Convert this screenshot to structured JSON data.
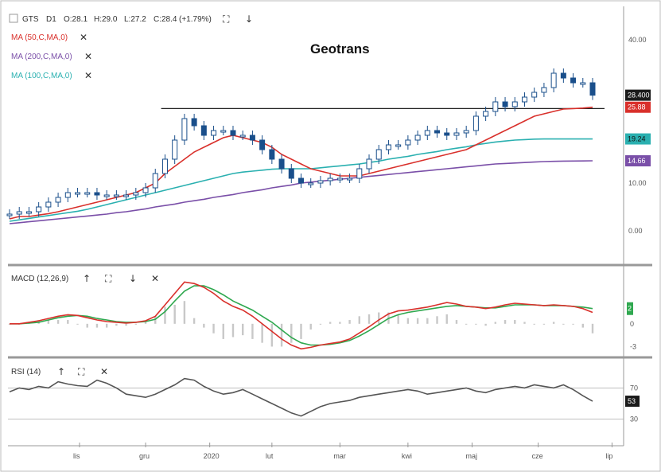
{
  "header": {
    "symbol": "GTS",
    "timeframe": "D1",
    "open": "O:28.1",
    "high": "H:29.0",
    "low": "L:27.2",
    "close": "C:28.4",
    "change": "(+1.79%)"
  },
  "title": "Geotrans",
  "indicators": [
    {
      "label": "MA (50,C,MA,0)",
      "color": "#d9302b"
    },
    {
      "label": "MA (200,C,MA,0)",
      "color": "#7a4fa8"
    },
    {
      "label": "MA (100,C,MA,0)",
      "color": "#2ab0b0"
    }
  ],
  "macd_label": "MACD (12,26,9)",
  "rsi_label": "RSI (14)",
  "icons": {
    "maximize": "maximize-icon",
    "down": "arrow-down-icon",
    "up": "arrow-up-icon",
    "close": "close-icon"
  },
  "colors": {
    "price": "#1a4f8b",
    "ma50": "#d9302b",
    "ma100": "#2ab0b0",
    "ma200": "#7a4fa8",
    "macd": "#d9302b",
    "signal": "#2fa84f",
    "rsi": "#555555",
    "last_price_tag": "#1a1a1a",
    "ma50_tag": "#d9302b",
    "ma100_tag": "#2ab0b0",
    "ma200_tag": "#7a4fa8"
  },
  "chart_data": [
    {
      "type": "line",
      "title": "Geotrans",
      "x_ticks": [
        "lis",
        "gru",
        "2020",
        "lut",
        "mar",
        "kwi",
        "maj",
        "cze",
        "lip"
      ],
      "y_ticks": [
        "40.00",
        "10.00",
        "0.00"
      ],
      "ylim": [
        -5,
        45
      ],
      "horizontal_line": 25.6,
      "tags": {
        "last": "28.400",
        "ma50": "25.88",
        "ma100": "19.24",
        "ma200": "14.66"
      },
      "x": [
        0,
        5,
        10,
        15,
        20,
        25,
        30,
        35,
        40,
        45,
        50,
        55,
        60,
        65,
        70,
        75,
        80,
        85,
        90,
        95,
        100,
        105,
        110,
        115,
        120,
        125,
        130,
        135,
        140,
        145,
        150,
        155,
        160,
        165,
        170,
        175,
        180,
        185,
        190,
        195,
        200,
        205,
        210,
        215,
        220,
        225,
        230,
        235,
        240,
        245,
        250,
        255,
        260,
        265,
        270,
        275,
        280,
        285,
        290,
        295,
        300
      ],
      "series": [
        {
          "name": "price",
          "values": [
            3.5,
            4,
            4,
            5,
            6,
            7,
            8,
            8,
            8,
            7.5,
            7.5,
            7.5,
            7.5,
            8,
            9,
            12,
            15,
            19,
            23.5,
            22,
            20,
            21,
            21,
            20,
            20,
            19,
            17,
            15,
            13,
            11,
            10,
            10,
            10.5,
            11,
            11,
            11,
            13,
            15,
            17,
            18,
            18,
            19,
            20,
            21,
            20.5,
            20,
            20.5,
            21,
            24,
            25,
            27,
            26,
            27,
            28,
            29,
            30,
            33,
            32,
            31,
            31,
            28.4
          ]
        },
        {
          "name": "ma50",
          "values": [
            2.5,
            3,
            3,
            3.3,
            3.6,
            4,
            4.5,
            5,
            5.5,
            6,
            6.5,
            7,
            7.5,
            8,
            9,
            10,
            12,
            13.5,
            15,
            16.5,
            17.5,
            18.5,
            19.5,
            20,
            19.5,
            19,
            18.5,
            17.5,
            16,
            15,
            14,
            13,
            12.5,
            12,
            11.5,
            11.5,
            11.5,
            12,
            12.5,
            13,
            13.5,
            14,
            14.5,
            15,
            15.5,
            16,
            16.5,
            17,
            18,
            19,
            20,
            21,
            22,
            23,
            24,
            24.5,
            25,
            25.5,
            25.6,
            25.7,
            25.88
          ]
        },
        {
          "name": "ma100",
          "values": [
            2,
            2.3,
            2.6,
            2.9,
            3.2,
            3.5,
            3.8,
            4.1,
            4.5,
            5,
            5.5,
            6,
            6.5,
            7,
            7.5,
            8,
            8.5,
            9,
            9.5,
            10,
            10.5,
            11,
            11.5,
            12,
            12.3,
            12.5,
            12.7,
            12.9,
            13,
            13,
            13,
            13,
            13.2,
            13.4,
            13.6,
            13.8,
            14,
            14.3,
            14.6,
            15,
            15.3,
            15.6,
            16,
            16.3,
            16.6,
            17,
            17.3,
            17.6,
            18,
            18.3,
            18.6,
            18.8,
            19,
            19.1,
            19.2,
            19.24,
            19.24,
            19.24,
            19.24,
            19.24,
            19.24
          ]
        },
        {
          "name": "ma200",
          "values": [
            1.5,
            1.7,
            1.9,
            2.1,
            2.3,
            2.5,
            2.7,
            2.9,
            3.1,
            3.3,
            3.5,
            3.8,
            4,
            4.3,
            4.6,
            5,
            5.3,
            5.6,
            6,
            6.3,
            6.6,
            7,
            7.3,
            7.6,
            8,
            8.3,
            8.6,
            9,
            9.3,
            9.6,
            10,
            10.2,
            10.4,
            10.6,
            10.8,
            11,
            11.2,
            11.4,
            11.6,
            11.8,
            12,
            12.2,
            12.4,
            12.6,
            12.8,
            13,
            13.2,
            13.4,
            13.6,
            13.8,
            14,
            14.1,
            14.2,
            14.3,
            14.4,
            14.5,
            14.55,
            14.6,
            14.62,
            14.64,
            14.66
          ]
        }
      ]
    },
    {
      "type": "line",
      "title": "MACD (12,26,9)",
      "y_ticks": [
        "0",
        "-3"
      ],
      "ylim": [
        -4,
        7
      ],
      "tags": {
        "macd": "2",
        "signal": "2"
      },
      "x": [
        0,
        5,
        10,
        15,
        20,
        25,
        30,
        35,
        40,
        45,
        50,
        55,
        60,
        65,
        70,
        75,
        80,
        85,
        90,
        95,
        100,
        105,
        110,
        115,
        120,
        125,
        130,
        135,
        140,
        145,
        150,
        155,
        160,
        165,
        170,
        175,
        180,
        185,
        190,
        195,
        200,
        205,
        210,
        215,
        220,
        225,
        230,
        235,
        240,
        245,
        250,
        255,
        260,
        265,
        270,
        275,
        280,
        285,
        290,
        295,
        300
      ],
      "series": [
        {
          "name": "macd",
          "values": [
            0,
            0,
            0.2,
            0.4,
            0.7,
            1,
            1.2,
            1.1,
            0.8,
            0.5,
            0.3,
            0.2,
            0.1,
            0.2,
            0.4,
            1,
            2.5,
            4,
            5.5,
            5.3,
            4.8,
            4,
            3,
            2.3,
            1.8,
            1,
            0,
            -1,
            -2,
            -2.8,
            -3.3,
            -3.1,
            -2.8,
            -2.6,
            -2.4,
            -2,
            -1.2,
            -0.4,
            0.5,
            1.3,
            1.7,
            1.8,
            2,
            2.2,
            2.5,
            2.8,
            2.6,
            2.3,
            2.2,
            2,
            2.2,
            2.5,
            2.7,
            2.6,
            2.5,
            2.4,
            2.5,
            2.4,
            2.3,
            2,
            1.5
          ]
        },
        {
          "name": "signal",
          "values": [
            0,
            0,
            0.1,
            0.2,
            0.5,
            0.8,
            1,
            1.1,
            1,
            0.7,
            0.5,
            0.3,
            0.2,
            0.2,
            0.3,
            0.6,
            1.6,
            3,
            4.3,
            5,
            5,
            4.5,
            3.8,
            3,
            2.4,
            1.8,
            1,
            0.2,
            -0.8,
            -1.8,
            -2.5,
            -2.8,
            -2.8,
            -2.7,
            -2.5,
            -2.2,
            -1.6,
            -0.9,
            -0.1,
            0.7,
            1.2,
            1.5,
            1.7,
            1.9,
            2.1,
            2.3,
            2.4,
            2.3,
            2.2,
            2.1,
            2.1,
            2.3,
            2.5,
            2.5,
            2.5,
            2.4,
            2.4,
            2.4,
            2.3,
            2.2,
            2
          ]
        }
      ]
    },
    {
      "type": "line",
      "title": "RSI (14)",
      "y_ticks": [
        "70",
        "30"
      ],
      "ylim": [
        0,
        100
      ],
      "tags": {
        "rsi": "53"
      },
      "x": [
        0,
        5,
        10,
        15,
        20,
        25,
        30,
        35,
        40,
        45,
        50,
        55,
        60,
        65,
        70,
        75,
        80,
        85,
        90,
        95,
        100,
        105,
        110,
        115,
        120,
        125,
        130,
        135,
        140,
        145,
        150,
        155,
        160,
        165,
        170,
        175,
        180,
        185,
        190,
        195,
        200,
        205,
        210,
        215,
        220,
        225,
        230,
        235,
        240,
        245,
        250,
        255,
        260,
        265,
        270,
        275,
        280,
        285,
        290,
        295,
        300
      ],
      "series": [
        {
          "name": "rsi",
          "values": [
            65,
            70,
            68,
            72,
            70,
            78,
            75,
            73,
            72,
            80,
            76,
            70,
            62,
            60,
            58,
            62,
            68,
            74,
            82,
            80,
            72,
            66,
            62,
            64,
            68,
            62,
            56,
            50,
            44,
            38,
            34,
            40,
            46,
            50,
            52,
            54,
            58,
            60,
            62,
            64,
            66,
            68,
            66,
            62,
            64,
            66,
            68,
            70,
            66,
            64,
            68,
            70,
            72,
            70,
            74,
            72,
            70,
            74,
            68,
            60,
            53
          ]
        }
      ]
    }
  ]
}
